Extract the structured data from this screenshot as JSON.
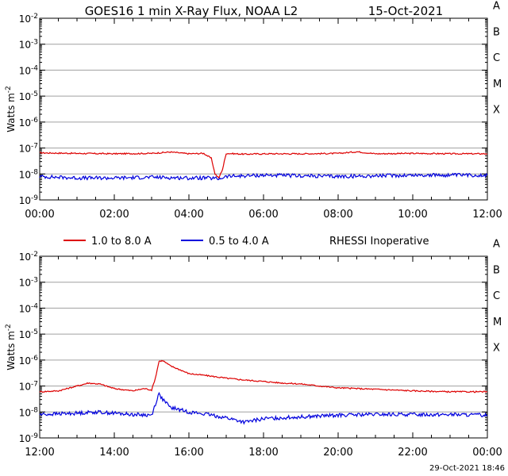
{
  "title": "GOES16 1 min X-Ray Flux, NOAA L2",
  "date": "15-Oct-2021",
  "timestamp": "29-Oct-2021 18:46",
  "ylabel": "Watts m",
  "ylabel_exp": "-2",
  "flare_classes": [
    "X",
    "M",
    "C",
    "B",
    "A"
  ],
  "y_ticks": [
    {
      "base": "10",
      "exp": "-2"
    },
    {
      "base": "10",
      "exp": "-3"
    },
    {
      "base": "10",
      "exp": "-4"
    },
    {
      "base": "10",
      "exp": "-5"
    },
    {
      "base": "10",
      "exp": "-6"
    },
    {
      "base": "10",
      "exp": "-7"
    },
    {
      "base": "10",
      "exp": "-8"
    },
    {
      "base": "10",
      "exp": "-9"
    }
  ],
  "legend": [
    {
      "label": "1.0 to 8.0 A",
      "color": "#dd0000"
    },
    {
      "label": "0.5 to 4.0 A",
      "color": "#0000dd"
    }
  ],
  "legend_note": "RHESSI Inoperative",
  "chart_data": [
    {
      "type": "line",
      "title": "GOES16 1 min X-Ray Flux, NOAA L2",
      "ylabel": "Watts m-2",
      "yscale": "log",
      "ylim": [
        1e-09,
        0.01
      ],
      "xlim": [
        0,
        12
      ],
      "x_tick_labels": [
        "00:00",
        "02:00",
        "04:00",
        "06:00",
        "08:00",
        "10:00",
        "12:00"
      ],
      "grid": "horizontal",
      "series": [
        {
          "name": "1.0 to 8.0 A",
          "color": "#dd0000",
          "x": [
            0,
            1,
            2,
            3,
            3.5,
            4,
            4.4,
            4.6,
            4.7,
            4.8,
            4.9,
            5.0,
            5.5,
            6,
            7,
            8,
            8.5,
            9,
            10,
            11,
            12
          ],
          "y": [
            6.5e-08,
            6.2e-08,
            6e-08,
            6.2e-08,
            7e-08,
            6e-08,
            6.2e-08,
            4e-08,
            1e-08,
            7e-09,
            1.5e-08,
            6.2e-08,
            5.8e-08,
            6e-08,
            6e-08,
            6.2e-08,
            7.2e-08,
            6e-08,
            6.2e-08,
            6e-08,
            6e-08
          ]
        },
        {
          "name": "0.5 to 4.0 A",
          "color": "#0000dd",
          "x": [
            0,
            1,
            2,
            3,
            4,
            4.5,
            4.8,
            5,
            5.5,
            6,
            7,
            8,
            9,
            10,
            11,
            12
          ],
          "y": [
            8e-09,
            7e-09,
            7e-09,
            7.5e-09,
            7e-09,
            7e-09,
            6.5e-09,
            8e-09,
            8.5e-09,
            9e-09,
            8.5e-09,
            8e-09,
            8.5e-09,
            9e-09,
            9e-09,
            9e-09
          ]
        }
      ]
    },
    {
      "type": "line",
      "ylabel": "Watts m-2",
      "yscale": "log",
      "ylim": [
        1e-09,
        0.01
      ],
      "xlim": [
        12,
        24
      ],
      "x_tick_labels": [
        "12:00",
        "14:00",
        "16:00",
        "18:00",
        "20:00",
        "22:00",
        "00:00"
      ],
      "grid": "horizontal",
      "series": [
        {
          "name": "1.0 to 8.0 A",
          "color": "#dd0000",
          "x": [
            12,
            12.5,
            13,
            13.3,
            13.6,
            14,
            14.5,
            14.8,
            15,
            15.1,
            15.2,
            15.3,
            15.5,
            15.8,
            16,
            16.5,
            17,
            17.5,
            18,
            18.5,
            19,
            19.5,
            20,
            21,
            22,
            23,
            24
          ],
          "y": [
            6e-08,
            6.5e-08,
            1e-07,
            1.3e-07,
            1.2e-07,
            8e-08,
            6.5e-08,
            8e-08,
            7e-08,
            2e-07,
            9e-07,
            9.5e-07,
            6e-07,
            4e-07,
            3e-07,
            2.5e-07,
            2e-07,
            1.7e-07,
            1.5e-07,
            1.3e-07,
            1.2e-07,
            1e-07,
            8.5e-08,
            7.5e-08,
            6.5e-08,
            6e-08,
            6e-08
          ]
        },
        {
          "name": "0.5 to 4.0 A",
          "color": "#0000dd",
          "x": [
            12,
            13,
            13.5,
            14,
            14.5,
            15,
            15.1,
            15.2,
            15.3,
            15.5,
            16,
            16.5,
            17,
            17.5,
            18,
            19,
            20,
            21,
            22,
            23,
            24
          ],
          "y": [
            8e-09,
            9e-09,
            1e-08,
            9e-09,
            8e-09,
            7.5e-09,
            2e-08,
            5e-08,
            3e-08,
            1.5e-08,
            1e-08,
            8e-09,
            6e-09,
            4e-09,
            5.5e-09,
            6.5e-09,
            7.5e-09,
            8e-09,
            8e-09,
            8e-09,
            7.5e-09
          ]
        }
      ]
    }
  ]
}
